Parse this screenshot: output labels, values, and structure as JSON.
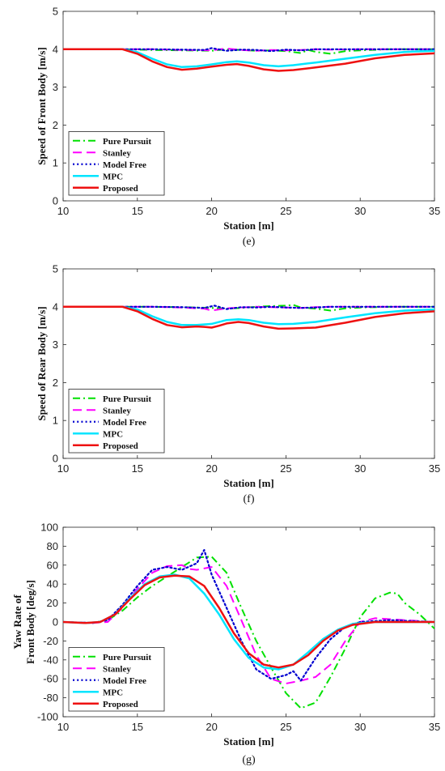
{
  "chart_data": [
    {
      "type": "line",
      "caption": "(e)",
      "xlabel": "Station [m]",
      "ylabel": "Speed of Front Body [m/s]",
      "xlim": [
        10,
        35
      ],
      "ylim": [
        0,
        5
      ],
      "xticks": [
        10,
        15,
        20,
        25,
        30,
        35
      ],
      "yticks": [
        0,
        1,
        2,
        3,
        4,
        5
      ],
      "legend_position": "bottom-left",
      "series": [
        {
          "name": "Pure Pursuit",
          "color": "#00e000",
          "style": "dashdot",
          "width": 2,
          "x": [
            10,
            13,
            14,
            16,
            18,
            20,
            21,
            22,
            23,
            24,
            25,
            26,
            26.5,
            27,
            28,
            29,
            30,
            32,
            35
          ],
          "y": [
            4,
            4,
            4,
            3.98,
            3.97,
            3.96,
            4.0,
            3.98,
            3.96,
            3.97,
            3.95,
            3.9,
            3.98,
            3.93,
            3.88,
            3.95,
            3.97,
            4.0,
            4.0
          ]
        },
        {
          "name": "Stanley",
          "color": "#ff00ff",
          "style": "dashed",
          "width": 2,
          "x": [
            10,
            14,
            16,
            18,
            20,
            21,
            22,
            23,
            24,
            25,
            26,
            27,
            28,
            30,
            35
          ],
          "y": [
            4,
            4,
            4.0,
            3.98,
            3.97,
            4.02,
            3.98,
            3.96,
            3.98,
            3.97,
            3.98,
            4.0,
            3.99,
            4.0,
            4.0
          ]
        },
        {
          "name": "Model Free",
          "color": "#0000d0",
          "style": "dotted",
          "width": 2.2,
          "x": [
            10,
            14,
            16,
            18,
            19.5,
            20,
            21,
            22,
            23,
            24,
            25,
            26,
            27,
            28,
            30,
            35
          ],
          "y": [
            4,
            4,
            4.0,
            3.99,
            3.98,
            4.03,
            3.96,
            3.99,
            3.98,
            3.95,
            3.99,
            3.97,
            4.0,
            4.0,
            4.0,
            4.0
          ]
        },
        {
          "name": "MPC",
          "color": "#00e5ff",
          "style": "solid",
          "width": 2.5,
          "x": [
            10,
            13,
            14,
            15,
            16,
            17,
            18,
            19,
            20,
            21,
            21.7,
            22.5,
            23.5,
            24.5,
            25.5,
            27,
            29,
            31,
            33,
            35
          ],
          "y": [
            4,
            4,
            4.0,
            3.92,
            3.75,
            3.6,
            3.53,
            3.55,
            3.6,
            3.66,
            3.68,
            3.65,
            3.58,
            3.55,
            3.58,
            3.65,
            3.75,
            3.85,
            3.93,
            3.96
          ]
        },
        {
          "name": "Proposed",
          "color": "#ee1111",
          "style": "solid",
          "width": 2.5,
          "x": [
            10,
            13,
            14,
            15,
            16,
            17,
            18,
            19,
            20,
            21,
            21.7,
            22.5,
            23.5,
            24.5,
            25.5,
            27,
            29,
            31,
            33,
            35
          ],
          "y": [
            4,
            4,
            4.0,
            3.88,
            3.68,
            3.53,
            3.46,
            3.49,
            3.54,
            3.59,
            3.61,
            3.56,
            3.47,
            3.43,
            3.45,
            3.52,
            3.62,
            3.76,
            3.85,
            3.89
          ]
        }
      ]
    },
    {
      "type": "line",
      "caption": "(f)",
      "xlabel": "Station [m]",
      "ylabel": "Speed of Rear Body [m/s]",
      "xlim": [
        10,
        35
      ],
      "ylim": [
        0,
        5
      ],
      "xticks": [
        10,
        15,
        20,
        25,
        30,
        35
      ],
      "yticks": [
        0,
        1,
        2,
        3,
        4,
        5
      ],
      "legend_position": "bottom-left",
      "series": [
        {
          "name": "Pure Pursuit",
          "color": "#00e000",
          "style": "dashdot",
          "width": 2,
          "x": [
            10,
            14,
            16,
            18,
            20,
            21,
            22,
            23,
            24,
            25,
            25.5,
            26,
            27,
            28,
            29,
            30,
            32,
            35
          ],
          "y": [
            4,
            4,
            4.0,
            3.99,
            3.97,
            3.95,
            3.97,
            4.0,
            4.02,
            4.03,
            4.05,
            3.98,
            3.95,
            3.9,
            3.96,
            3.98,
            4.0,
            4.0
          ]
        },
        {
          "name": "Stanley",
          "color": "#ff00ff",
          "style": "dashed",
          "width": 2,
          "x": [
            10,
            14,
            16,
            18,
            19.5,
            20,
            21,
            22,
            23,
            24,
            25,
            26,
            27,
            28,
            30,
            35
          ],
          "y": [
            4,
            4,
            4.0,
            3.98,
            3.95,
            3.9,
            3.96,
            3.98,
            4.0,
            3.99,
            3.98,
            3.97,
            3.99,
            4.0,
            4.0,
            4.0
          ]
        },
        {
          "name": "Model Free",
          "color": "#0000d0",
          "style": "dotted",
          "width": 2.2,
          "x": [
            10,
            14,
            16,
            18,
            19.5,
            20.2,
            21,
            22,
            23,
            24,
            25,
            26,
            27,
            28,
            30,
            35
          ],
          "y": [
            4,
            4,
            4.0,
            3.99,
            3.97,
            4.03,
            3.94,
            3.99,
            3.98,
            4.0,
            3.98,
            3.97,
            3.98,
            4.0,
            4.0,
            4.0
          ]
        },
        {
          "name": "MPC",
          "color": "#00e5ff",
          "style": "solid",
          "width": 2.5,
          "x": [
            10,
            13,
            14,
            15,
            16,
            17,
            18,
            19,
            20,
            21,
            21.8,
            22.5,
            23.5,
            24.5,
            25.5,
            27,
            29,
            31,
            33,
            35
          ],
          "y": [
            4,
            4,
            4.0,
            3.93,
            3.75,
            3.6,
            3.52,
            3.52,
            3.55,
            3.65,
            3.67,
            3.65,
            3.58,
            3.54,
            3.55,
            3.6,
            3.72,
            3.83,
            3.9,
            3.93
          ]
        },
        {
          "name": "Proposed",
          "color": "#ee1111",
          "style": "solid",
          "width": 2.5,
          "x": [
            10,
            13,
            14,
            15,
            16,
            17,
            18,
            19,
            19.5,
            20,
            20.5,
            21,
            21.8,
            22.5,
            23.5,
            24.5,
            25.5,
            27,
            29,
            31,
            33,
            35
          ],
          "y": [
            4,
            4,
            4.0,
            3.88,
            3.68,
            3.52,
            3.46,
            3.48,
            3.47,
            3.45,
            3.5,
            3.56,
            3.6,
            3.57,
            3.48,
            3.42,
            3.43,
            3.45,
            3.58,
            3.73,
            3.83,
            3.88
          ]
        }
      ]
    },
    {
      "type": "line",
      "caption": "(g)",
      "xlabel": "Station [m]",
      "ylabel": "Yaw Rate of Front Body [deg/s]",
      "ylabel_lines": [
        "Yaw Rate of",
        "Front Body [deg/s]"
      ],
      "xlim": [
        10,
        35
      ],
      "ylim": [
        -100,
        100
      ],
      "xticks": [
        10,
        15,
        20,
        25,
        30,
        35
      ],
      "yticks": [
        -100,
        -80,
        -60,
        -40,
        -20,
        0,
        20,
        40,
        60,
        80,
        100
      ],
      "legend_position": "bottom-left",
      "series": [
        {
          "name": "Pure Pursuit",
          "color": "#00e000",
          "style": "dashdot",
          "width": 2,
          "x": [
            10,
            12,
            13,
            14,
            15,
            16,
            17,
            18,
            19,
            20,
            21,
            22,
            23,
            24,
            25,
            26,
            27,
            28,
            29,
            30,
            31,
            32,
            32.5,
            33,
            34,
            35
          ],
          "y": [
            0,
            -1,
            2,
            12,
            26,
            38,
            48,
            58,
            68,
            69,
            52,
            15,
            -20,
            -48,
            -75,
            -91,
            -85,
            -58,
            -28,
            5,
            25,
            31,
            30,
            20,
            8,
            -7
          ]
        },
        {
          "name": "Stanley",
          "color": "#ff00ff",
          "style": "dashed",
          "width": 2,
          "x": [
            10,
            12,
            13,
            14,
            15,
            16,
            17,
            18,
            18.5,
            19,
            20,
            21,
            22,
            23,
            24,
            25,
            26,
            27,
            28,
            29,
            30,
            31,
            33,
            35
          ],
          "y": [
            0,
            -1,
            0,
            15,
            35,
            52,
            59,
            60,
            56,
            55,
            58,
            38,
            2,
            -35,
            -60,
            -65,
            -62,
            -58,
            -45,
            -20,
            0,
            4,
            2,
            0
          ]
        },
        {
          "name": "Model Free",
          "color": "#0000d0",
          "style": "dotted",
          "width": 2.2,
          "x": [
            10,
            12,
            13,
            14,
            15,
            16,
            17,
            18,
            19,
            19.5,
            20,
            21,
            22,
            23,
            24,
            25,
            25.5,
            26,
            27,
            28,
            29,
            30,
            32,
            35
          ],
          "y": [
            0,
            -1,
            2,
            18,
            38,
            55,
            58,
            55,
            62,
            76,
            50,
            15,
            -20,
            -50,
            -60,
            -56,
            -52,
            -62,
            -38,
            -18,
            -5,
            0,
            2,
            0
          ]
        },
        {
          "name": "MPC",
          "color": "#00e5ff",
          "style": "solid",
          "width": 2.5,
          "x": [
            10,
            11.5,
            12.5,
            13.5,
            14.5,
            15.5,
            16.5,
            17.5,
            18.5,
            19.5,
            20.5,
            21.5,
            22.5,
            23.5,
            24.5,
            25.5,
            26.5,
            27.5,
            28.5,
            29.5,
            31,
            33,
            35
          ],
          "y": [
            0,
            -1,
            0,
            8,
            25,
            40,
            48,
            50,
            46,
            30,
            8,
            -18,
            -38,
            -48,
            -50,
            -45,
            -32,
            -18,
            -8,
            -2,
            0,
            0,
            0
          ]
        },
        {
          "name": "Proposed",
          "color": "#ee1111",
          "style": "solid",
          "width": 2.5,
          "x": [
            10,
            11.5,
            12.5,
            13.5,
            14.5,
            15.5,
            16.5,
            17.5,
            18.5,
            19.5,
            20.5,
            21.5,
            22.5,
            23.5,
            24.5,
            25.5,
            26.5,
            27.5,
            28.5,
            29.5,
            31,
            33,
            35
          ],
          "y": [
            0,
            -1,
            0,
            8,
            24,
            39,
            47,
            49,
            48,
            38,
            15,
            -12,
            -33,
            -45,
            -48,
            -45,
            -35,
            -20,
            -9,
            -3,
            0,
            0,
            0
          ]
        }
      ]
    }
  ]
}
